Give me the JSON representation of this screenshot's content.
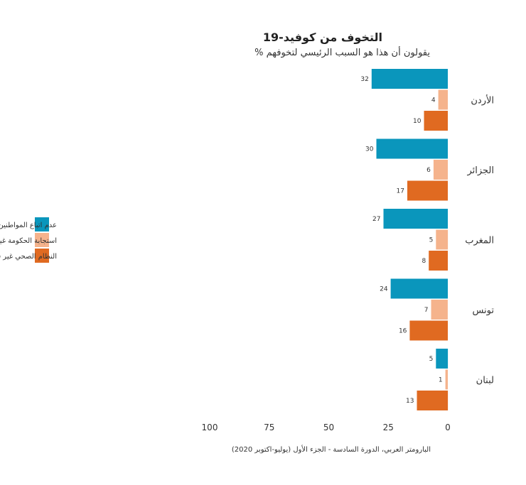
{
  "chart_data": {
    "type": "bar",
    "orientation": "horizontal",
    "title": "التخوف من كوفيد-19",
    "subtitle": "% يقولون أن هذا هو السبب الرئيسي لتخوفهم",
    "categories": [
      "الأردن",
      "الجزائر",
      "المغرب",
      "تونس",
      "لبنان"
    ],
    "series": [
      {
        "name": "عدم اتباع المواطنين للتعليمات",
        "color": "#0a96bc",
        "values": [
          32,
          30,
          27,
          24,
          5
        ]
      },
      {
        "name": "استجابة الحكومة غير كافية",
        "color": "#f5b38c",
        "values": [
          4,
          6,
          5,
          7,
          1
        ]
      },
      {
        "name": "النظام الصحي غير قادر على مجابهة الجائحة",
        "color": "#e06a21",
        "values": [
          10,
          17,
          8,
          16,
          13
        ]
      }
    ],
    "x_ticks": [
      100,
      75,
      50,
      25,
      0
    ],
    "xlim": [
      0,
      100
    ],
    "x_direction": "right-to-left",
    "grid": false,
    "legend_position": "left"
  },
  "source": "البارومتر العربي، الدورة السادسة - الجزء الأول (يوليو-اكتوبر 2020)"
}
